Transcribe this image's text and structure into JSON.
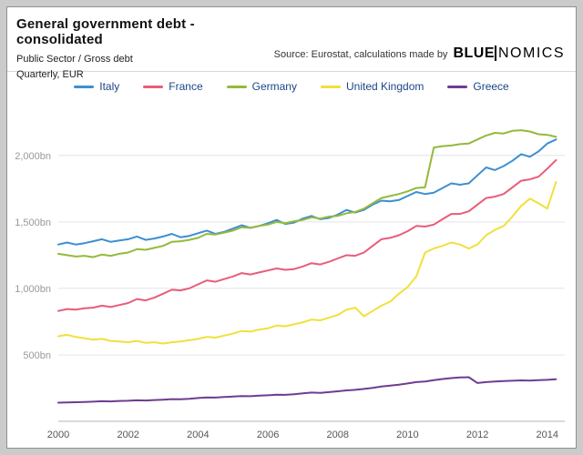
{
  "header": {
    "title": "General government debt - consolidated",
    "subtitle1": "Public Sector / Gross debt",
    "subtitle2": "Quarterly, EUR",
    "source_text": "Source: Eurostat, calculations made by",
    "logo_blue": "BLUE",
    "logo_rest": "NOMICS"
  },
  "chart_data": {
    "type": "line",
    "title": "General government debt - consolidated",
    "xlabel": "",
    "ylabel": "",
    "unit": "bn EUR",
    "frequency": "quarterly",
    "x_start": 2000,
    "x_step": 0.25,
    "xlim": [
      2000,
      2014.5
    ],
    "ylim": [
      0,
      2300
    ],
    "x_ticks": [
      2000,
      2002,
      2004,
      2006,
      2008,
      2010,
      2012,
      2014
    ],
    "y_ticks": [
      500,
      1000,
      1500,
      2000
    ],
    "y_tick_labels": [
      "500bn",
      "1,000bn",
      "1,500bn",
      "2,000bn"
    ],
    "grid": "horizontal",
    "legend_position": "top",
    "series": [
      {
        "name": "Italy",
        "color": "#3d8fd1",
        "values": [
          1330,
          1345,
          1330,
          1340,
          1355,
          1370,
          1350,
          1360,
          1370,
          1390,
          1365,
          1375,
          1390,
          1410,
          1385,
          1395,
          1415,
          1435,
          1410,
          1425,
          1450,
          1475,
          1455,
          1470,
          1490,
          1515,
          1485,
          1495,
          1525,
          1545,
          1520,
          1530,
          1555,
          1590,
          1570,
          1590,
          1630,
          1660,
          1655,
          1665,
          1695,
          1725,
          1710,
          1720,
          1755,
          1790,
          1780,
          1790,
          1850,
          1910,
          1890,
          1920,
          1960,
          2010,
          1990,
          2030,
          2090,
          2120
        ]
      },
      {
        "name": "France",
        "color": "#e85d78",
        "values": [
          830,
          845,
          840,
          850,
          855,
          870,
          860,
          875,
          890,
          920,
          910,
          930,
          960,
          990,
          985,
          1000,
          1030,
          1060,
          1050,
          1070,
          1090,
          1115,
          1105,
          1120,
          1135,
          1150,
          1140,
          1145,
          1165,
          1190,
          1180,
          1200,
          1225,
          1250,
          1245,
          1270,
          1320,
          1370,
          1380,
          1400,
          1430,
          1470,
          1465,
          1480,
          1520,
          1560,
          1560,
          1580,
          1630,
          1680,
          1690,
          1710,
          1760,
          1810,
          1820,
          1840,
          1900,
          1965
        ]
      },
      {
        "name": "Germany",
        "color": "#93ba3b",
        "values": [
          1260,
          1250,
          1240,
          1245,
          1235,
          1255,
          1245,
          1260,
          1270,
          1295,
          1290,
          1305,
          1320,
          1350,
          1355,
          1365,
          1380,
          1410,
          1405,
          1420,
          1435,
          1460,
          1455,
          1470,
          1480,
          1500,
          1490,
          1505,
          1515,
          1535,
          1525,
          1540,
          1545,
          1565,
          1575,
          1600,
          1640,
          1680,
          1695,
          1710,
          1730,
          1755,
          1760,
          2060,
          2070,
          2075,
          2085,
          2090,
          2120,
          2150,
          2170,
          2165,
          2185,
          2190,
          2180,
          2160,
          2155,
          2140
        ]
      },
      {
        "name": "United Kingdom",
        "color": "#f1e03b",
        "values": [
          640,
          650,
          635,
          625,
          615,
          620,
          605,
          600,
          595,
          605,
          590,
          595,
          585,
          595,
          600,
          610,
          620,
          635,
          630,
          645,
          660,
          680,
          675,
          690,
          700,
          720,
          715,
          730,
          745,
          765,
          760,
          780,
          800,
          840,
          855,
          790,
          830,
          870,
          900,
          960,
          1010,
          1090,
          1270,
          1300,
          1320,
          1345,
          1330,
          1300,
          1330,
          1400,
          1440,
          1470,
          1540,
          1620,
          1675,
          1640,
          1600,
          1800
        ]
      },
      {
        "name": "Greece",
        "color": "#6d3d91",
        "values": [
          140,
          142,
          144,
          146,
          148,
          151,
          150,
          153,
          155,
          158,
          157,
          160,
          163,
          167,
          166,
          170,
          175,
          180,
          179,
          183,
          186,
          190,
          189,
          193,
          196,
          200,
          199,
          203,
          210,
          216,
          214,
          220,
          226,
          233,
          237,
          244,
          252,
          262,
          268,
          275,
          285,
          295,
          300,
          310,
          318,
          325,
          330,
          332,
          288,
          295,
          300,
          303,
          305,
          308,
          306,
          310,
          312,
          317
        ]
      }
    ]
  }
}
